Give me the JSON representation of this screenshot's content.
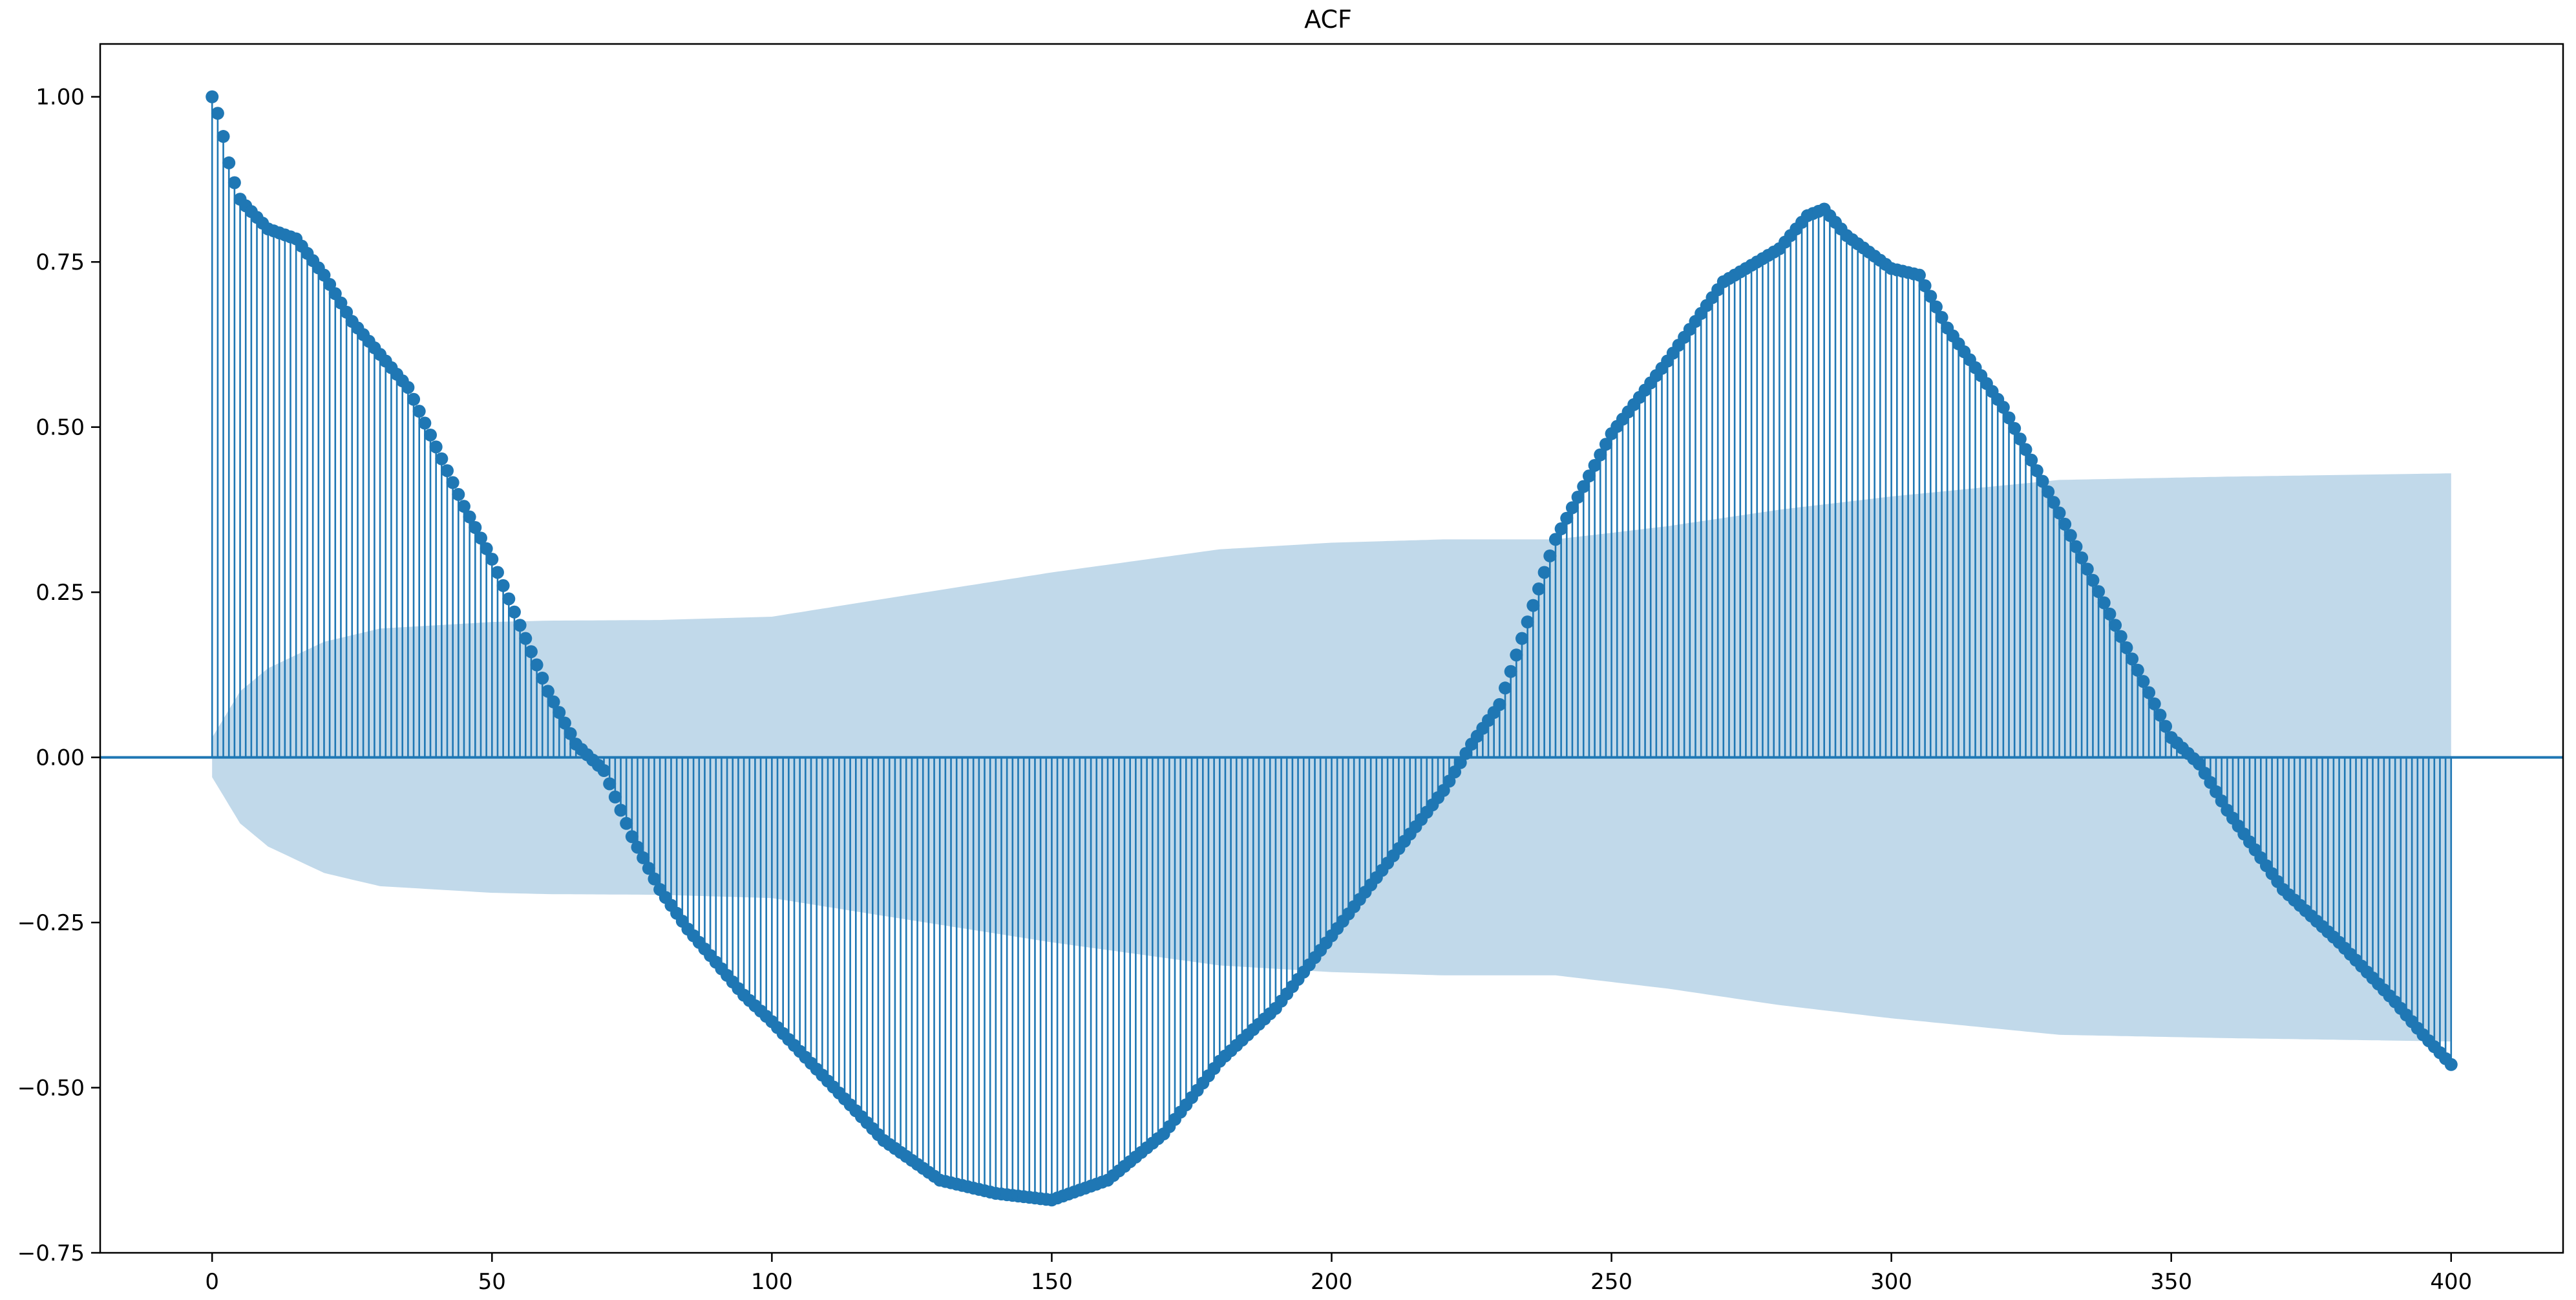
{
  "chart_data": {
    "type": "stem",
    "title": "ACF",
    "xlabel": "",
    "ylabel": "",
    "xlim": [
      -20,
      420
    ],
    "ylim": [
      -0.75,
      1.08
    ],
    "x_ticks": [
      0,
      50,
      100,
      150,
      200,
      250,
      300,
      350,
      400
    ],
    "x_tick_labels": [
      "0",
      "50",
      "100",
      "150",
      "200",
      "250",
      "300",
      "350",
      "400"
    ],
    "y_ticks": [
      -0.75,
      -0.5,
      -0.25,
      0.0,
      0.25,
      0.5,
      0.75,
      1.0
    ],
    "y_tick_labels": [
      "−0.75",
      "−0.50",
      "−0.25",
      "0.00",
      "0.25",
      "0.50",
      "0.75",
      "1.00"
    ],
    "grid": false,
    "legend": "none",
    "lag_range": [
      0,
      400
    ],
    "series": [
      {
        "kind": "autocorrelation",
        "color": "#1f77b4",
        "keypoints_lag": [
          0,
          1,
          2,
          3,
          4,
          5,
          6,
          10,
          15,
          20,
          25,
          30,
          35,
          40,
          45,
          50,
          55,
          60,
          65,
          70,
          75,
          80,
          85,
          90,
          95,
          100,
          110,
          120,
          130,
          140,
          150,
          160,
          170,
          180,
          190,
          200,
          210,
          220,
          225,
          230,
          240,
          250,
          260,
          270,
          280,
          285,
          288,
          292,
          300,
          305,
          310,
          320,
          330,
          340,
          350,
          355,
          360,
          370,
          380,
          390,
          395,
          400
        ],
        "keypoints_acf": [
          1.0,
          0.975,
          0.94,
          0.9,
          0.87,
          0.845,
          0.835,
          0.8,
          0.785,
          0.73,
          0.66,
          0.61,
          0.56,
          0.47,
          0.38,
          0.3,
          0.2,
          0.1,
          0.02,
          -0.02,
          -0.12,
          -0.2,
          -0.26,
          -0.31,
          -0.36,
          -0.4,
          -0.49,
          -0.58,
          -0.64,
          -0.66,
          -0.67,
          -0.64,
          -0.57,
          -0.46,
          -0.38,
          -0.27,
          -0.16,
          -0.05,
          0.02,
          0.08,
          0.33,
          0.49,
          0.6,
          0.72,
          0.77,
          0.82,
          0.83,
          0.79,
          0.74,
          0.73,
          0.65,
          0.53,
          0.37,
          0.2,
          0.03,
          -0.01,
          -0.08,
          -0.2,
          -0.28,
          -0.37,
          -0.42,
          -0.465
        ]
      },
      {
        "kind": "confidence-band",
        "color": "#1f77b4",
        "fill_opacity": 0.28,
        "keypoints_lag": [
          0,
          5,
          10,
          20,
          30,
          50,
          60,
          80,
          100,
          120,
          150,
          180,
          200,
          220,
          240,
          260,
          280,
          300,
          330,
          360,
          400
        ],
        "keypoints_upper": [
          0.03,
          0.1,
          0.135,
          0.175,
          0.195,
          0.205,
          0.207,
          0.208,
          0.213,
          0.24,
          0.28,
          0.315,
          0.325,
          0.33,
          0.33,
          0.35,
          0.375,
          0.395,
          0.42,
          0.425,
          0.43
        ]
      }
    ],
    "baseline": 0.0
  }
}
